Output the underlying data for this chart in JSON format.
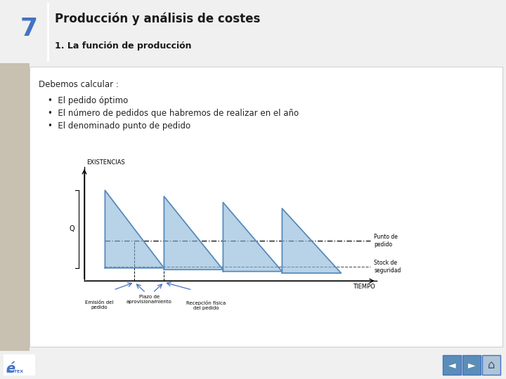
{
  "title_number": "7",
  "title_main": "Producción y análisis de costes",
  "title_sub": "1. La función de producción",
  "header_bg": "#d4d4d4",
  "header_number_color": "#4472c4",
  "body_bg": "#ffffff",
  "left_strip_bg": "#c8c0b0",
  "slide_bg": "#f0f0f0",
  "debemos_text": "Debemos calcular :",
  "bullets": [
    "El pedido óptimo",
    "El número de pedidos que habremos de realizar en el año",
    "El denominado punto de pedido"
  ],
  "chart_ylabel": "EXISTENCIAS",
  "chart_xlabel": "TIEMPO",
  "chart_Q_label": "Q",
  "chart_punto_pedido": "Punto de\npedido",
  "chart_stock_seguridad": "Stock de\nseguridad",
  "chart_emision": "Emisión del\npedido",
  "chart_plazo": "Plazo de\naprovisionamiento",
  "chart_recepcion": "Recepción física\ndel pedido",
  "sawtooth_color": "#8ab4d8",
  "sawtooth_edge_color": "#5588bb",
  "dashed_line_color": "#000000",
  "arrow_color": "#4472c4",
  "bottom_bg": "#e0e0e0",
  "nav_bg": "#5b8db8",
  "nav_border": "#4472c4"
}
